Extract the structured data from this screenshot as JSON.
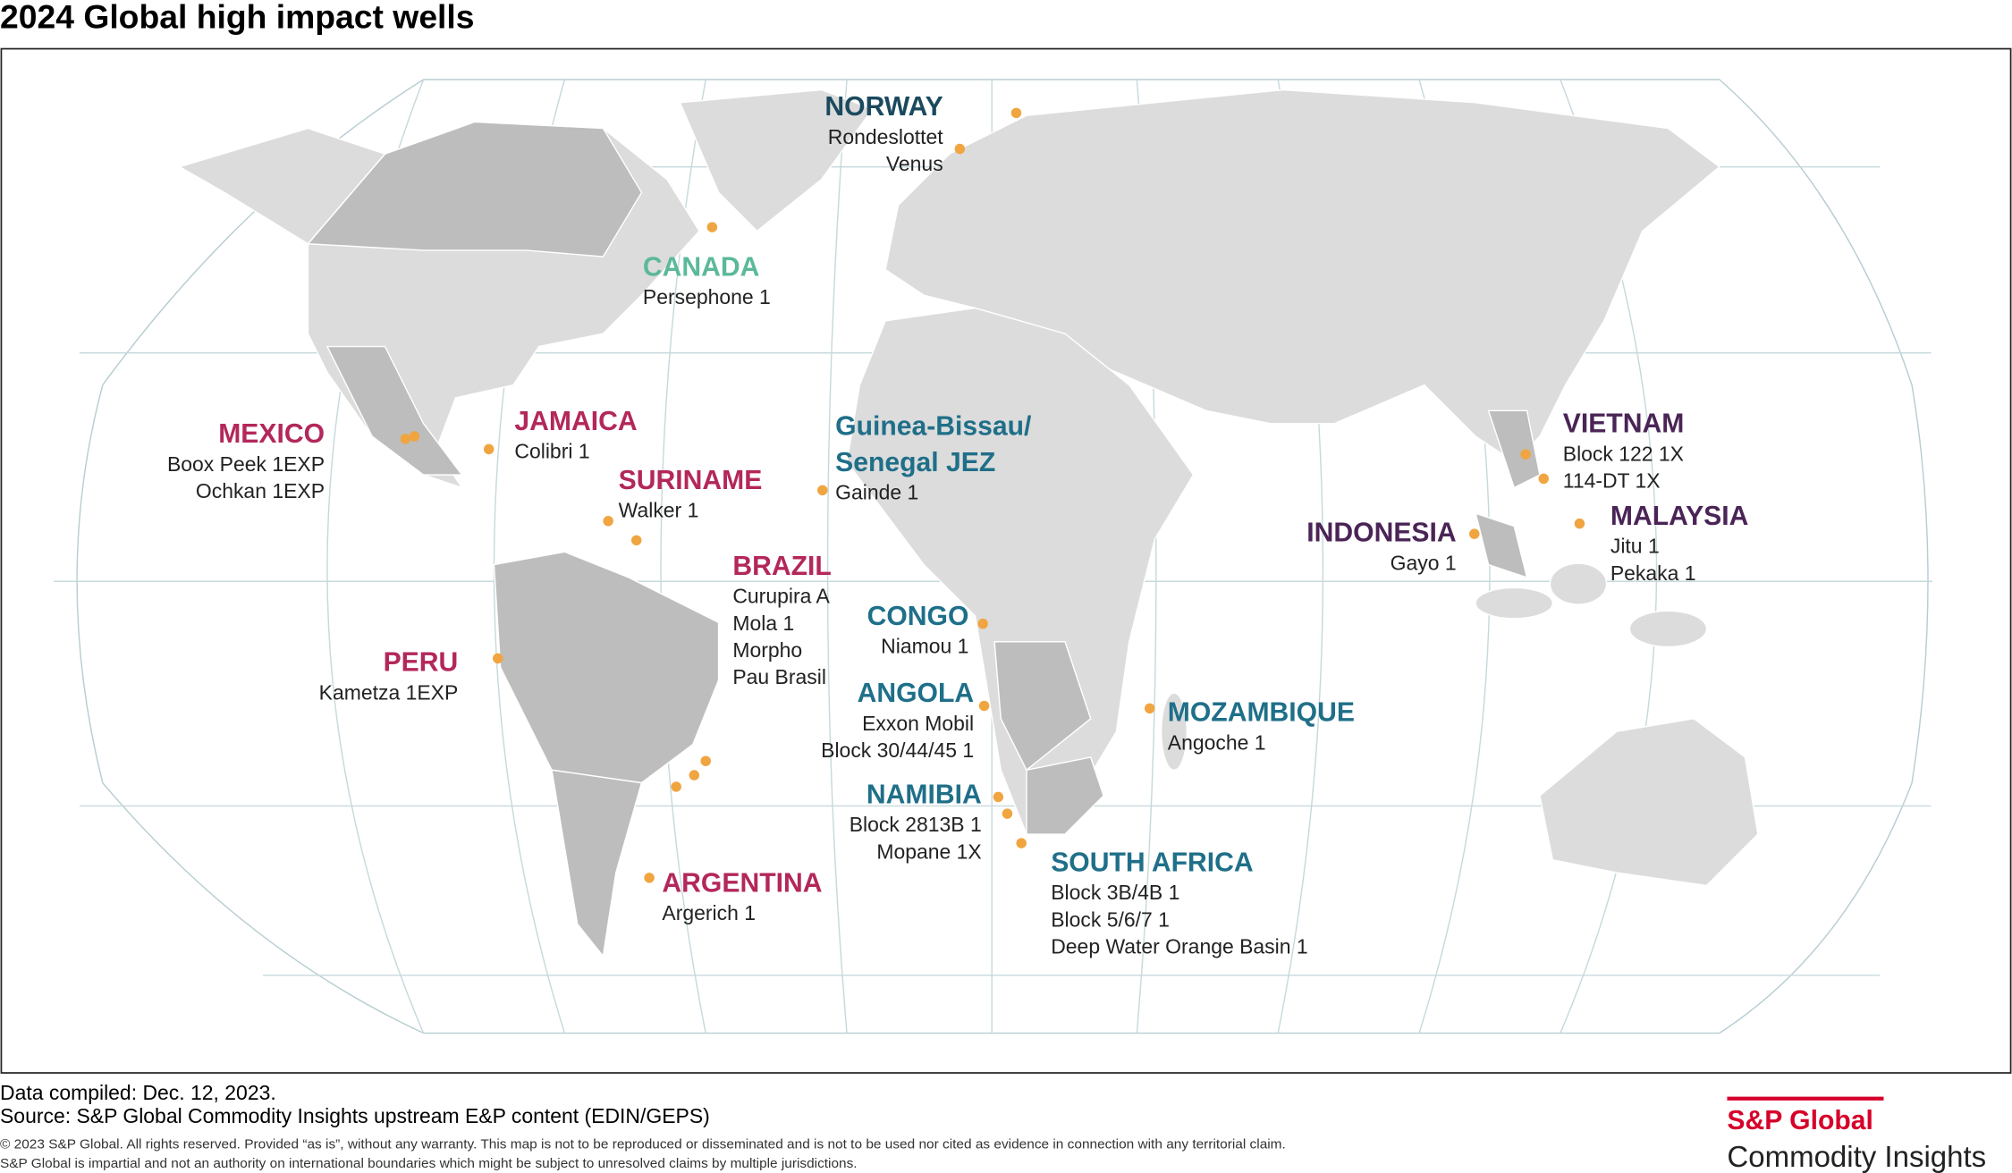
{
  "title": "2024 Global high impact wells",
  "regions": [
    {
      "name": "NORWAY",
      "color": "#1b4a5e",
      "wells": [
        "Rondeslottet",
        "Venus"
      ]
    },
    {
      "name": "CANADA",
      "color": "#5bb99a",
      "wells": [
        "Persephone 1"
      ]
    },
    {
      "name": "MEXICO",
      "color": "#b3275a",
      "wells": [
        "Boox Peek 1EXP",
        "Ochkan 1EXP"
      ]
    },
    {
      "name": "JAMAICA",
      "color": "#b3275a",
      "wells": [
        "Colibri 1"
      ]
    },
    {
      "name": "SURINAME",
      "color": "#b3275a",
      "wells": [
        "Walker 1"
      ]
    },
    {
      "name": "BRAZIL",
      "color": "#b3275a",
      "wells": [
        "Curupira A",
        "Mola 1",
        "Morpho",
        "Pau Brasil"
      ]
    },
    {
      "name": "PERU",
      "color": "#b3275a",
      "wells": [
        "Kametza 1EXP"
      ]
    },
    {
      "name": "ARGENTINA",
      "color": "#b3275a",
      "wells": [
        "Argerich 1"
      ]
    },
    {
      "name": [
        "Guinea-Bissau/",
        "Senegal JEZ"
      ],
      "color": "#1f6f89",
      "wells": [
        "Gainde 1"
      ]
    },
    {
      "name": "CONGO",
      "color": "#1f6f89",
      "wells": [
        "Niamou 1"
      ]
    },
    {
      "name": "ANGOLA",
      "color": "#1f6f89",
      "wells": [
        "Exxon Mobil",
        "Block 30/44/45 1"
      ]
    },
    {
      "name": "NAMIBIA",
      "color": "#1f6f89",
      "wells": [
        "Block 2813B 1",
        "Mopane 1X"
      ]
    },
    {
      "name": "SOUTH AFRICA",
      "color": "#1f6f89",
      "wells": [
        "Block 3B/4B 1",
        "Block 5/6/7 1",
        "Deep Water Orange Basin 1"
      ]
    },
    {
      "name": "MOZAMBIQUE",
      "color": "#1f6f89",
      "wells": [
        "Angoche 1"
      ]
    },
    {
      "name": "INDONESIA",
      "color": "#4a2456",
      "wells": [
        "Gayo 1"
      ]
    },
    {
      "name": "VIETNAM",
      "color": "#4a2456",
      "wells": [
        "Block 122 1X",
        "114-DT 1X"
      ]
    },
    {
      "name": "MALAYSIA",
      "color": "#4a2456",
      "wells": [
        "Jitu 1",
        "Pekaka 1"
      ]
    }
  ],
  "footer": {
    "compiled": "Data compiled: Dec. 12, 2023.",
    "source": "Source: S&P Global Commodity Insights upstream E&P content (EDIN/GEPS)",
    "copyright": [
      "© 2023 S&P Global. All rights reserved. Provided “as is”, without any warranty. This map is not to be reproduced or disseminated and is not to be used nor cited as evidence in connection with any territorial claim.",
      "S&P Global is impartial and not an authority on international boundaries which might be subject to unresolved claims by multiple jurisdictions."
    ]
  },
  "logo": {
    "brand": "S&P Global",
    "product": "Commodity Insights"
  }
}
